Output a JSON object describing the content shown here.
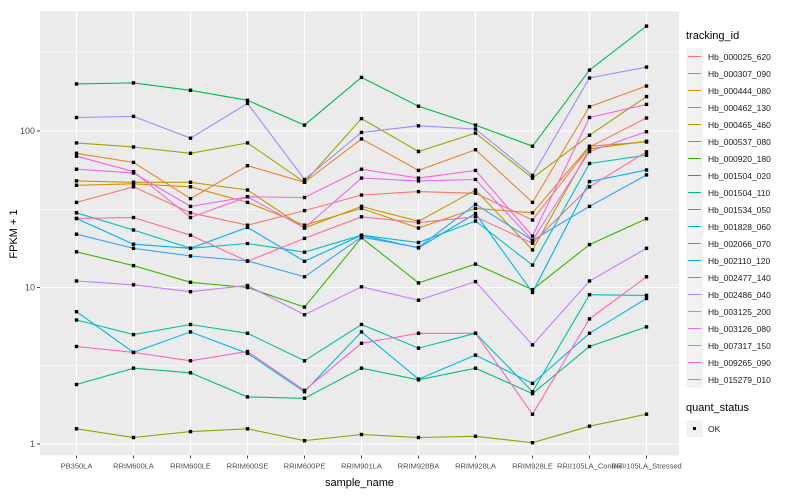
{
  "chart_data": {
    "type": "line",
    "title": "",
    "xlabel": "sample_name",
    "ylabel": "FPKM + 1",
    "y_scale": "log10",
    "y_ticks": [
      1,
      10,
      100
    ],
    "y_minor_ticks": [
      3.162,
      31.62,
      316.2
    ],
    "ylim": [
      0.85,
      580
    ],
    "grid": true,
    "panel_bg": "#EBEBEB",
    "grid_color": "#FFFFFF",
    "point_color": "#000000",
    "tick_color": "#333333",
    "tick_label_color": "#4D4D4D",
    "legend_position": "right",
    "categories": [
      "PB350LA",
      "RRIM600LA",
      "RRIM600LE",
      "RRIM600SE",
      "RRIM600PE",
      "RRIM901LA",
      "RRIM928BA",
      "RRIM928LA",
      "RRIM928LE",
      "RRII105LA_Control",
      "RRII105LA_Stressed"
    ],
    "series": [
      {
        "name": "Hb_000025_620",
        "color": "#F8766D",
        "values": [
          35,
          44,
          30,
          25,
          31,
          39,
          41,
          40,
          27,
          79,
          121
        ]
      },
      {
        "name": "Hb_000307_090",
        "color": "#EA8331",
        "values": [
          72,
          63,
          37,
          60,
          47,
          89,
          56,
          76,
          35,
          143,
          194
        ]
      },
      {
        "name": "Hb_000444_080",
        "color": "#D89000",
        "values": [
          45,
          46,
          44,
          35,
          25,
          32,
          24,
          32,
          30,
          80,
          85
        ]
      },
      {
        "name": "Hb_000462_130",
        "color": "#C09B00",
        "values": [
          48,
          47,
          47,
          42,
          24,
          33,
          26.5,
          42,
          17.4,
          77,
          86
        ]
      },
      {
        "name": "Hb_000465_460",
        "color": "#A3A500",
        "values": [
          84,
          79,
          72,
          84,
          47,
          120,
          74,
          97,
          50,
          94,
          166
        ]
      },
      {
        "name": "Hb_000537_080",
        "color": "#7CAE00",
        "values": [
          1.25,
          1.1,
          1.2,
          1.25,
          1.05,
          1.15,
          1.1,
          1.12,
          1.02,
          1.3,
          1.55
        ]
      },
      {
        "name": "Hb_000920_180",
        "color": "#39B600",
        "values": [
          16.9,
          13.8,
          10.8,
          10,
          7.5,
          20.8,
          10.7,
          14.1,
          9.7,
          18.8,
          27.5
        ]
      },
      {
        "name": "Hb_001504_020",
        "color": "#00BB4E",
        "values": [
          200,
          203,
          182,
          157,
          109,
          220,
          144,
          109,
          80,
          245,
          468
        ]
      },
      {
        "name": "Hb_001504_110",
        "color": "#00BF7D",
        "values": [
          2.4,
          3.05,
          2.85,
          2.0,
          1.96,
          3.05,
          2.57,
          3.05,
          2.1,
          4.2,
          5.6
        ]
      },
      {
        "name": "Hb_001534_050",
        "color": "#00C1A3",
        "values": [
          6.2,
          5.0,
          5.8,
          5.1,
          3.4,
          5.8,
          4.1,
          5.1,
          2.16,
          9.0,
          8.9
        ]
      },
      {
        "name": "Hb_001828_060",
        "color": "#00BFC4",
        "values": [
          30,
          23.3,
          17.8,
          19.1,
          16.8,
          21.6,
          19.4,
          26.6,
          13.9,
          62,
          70
        ]
      },
      {
        "name": "Hb_002066_070",
        "color": "#00BAE0",
        "values": [
          7.0,
          3.85,
          5.2,
          3.8,
          2.16,
          5.2,
          2.6,
          3.7,
          2.44,
          5.1,
          8.5
        ]
      },
      {
        "name": "Hb_002110_120",
        "color": "#00B0F6",
        "values": [
          27.6,
          18.9,
          17.8,
          24.2,
          14.7,
          21.6,
          17.9,
          29.7,
          9.3,
          47.5,
          56.3
        ]
      },
      {
        "name": "Hb_002477_140",
        "color": "#35A2FF",
        "values": [
          21.9,
          17.8,
          15.9,
          14.8,
          11.7,
          21,
          18,
          34,
          20,
          33,
          52.4
        ]
      },
      {
        "name": "Hb_002486_040",
        "color": "#9590FF",
        "values": [
          122,
          124,
          90,
          150,
          49,
          98,
          108,
          103,
          52,
          218,
          256
        ]
      },
      {
        "name": "Hb_003125_200",
        "color": "#C77CFF",
        "values": [
          11,
          10.4,
          9.4,
          10.3,
          6.7,
          10.1,
          8.3,
          10.9,
          4.3,
          11,
          17.8
        ]
      },
      {
        "name": "Hb_003126_080",
        "color": "#E76BF3",
        "values": [
          57,
          54,
          33,
          38,
          24,
          50,
          48,
          49,
          20,
          74,
          99
        ]
      },
      {
        "name": "Hb_007317_150",
        "color": "#FA62DB",
        "values": [
          69,
          55,
          28,
          38,
          37.6,
          57,
          50,
          56,
          21.3,
          122,
          148
        ]
      },
      {
        "name": "Hb_009265_090",
        "color": "#FF62BC",
        "values": [
          4.2,
          3.85,
          3.4,
          3.9,
          2.2,
          4.4,
          5.1,
          5.1,
          1.55,
          6.3,
          11.7
        ]
      },
      {
        "name": "Hb_015279_010",
        "color": "#FF6A98",
        "values": [
          27.6,
          28,
          21.6,
          14.7,
          20.6,
          28.3,
          26,
          28.3,
          19.2,
          44,
          73.6
        ]
      }
    ]
  },
  "legend": {
    "tracking_title": "tracking_id",
    "quant_title": "quant_status",
    "quant_items": [
      {
        "label": "OK"
      }
    ]
  }
}
